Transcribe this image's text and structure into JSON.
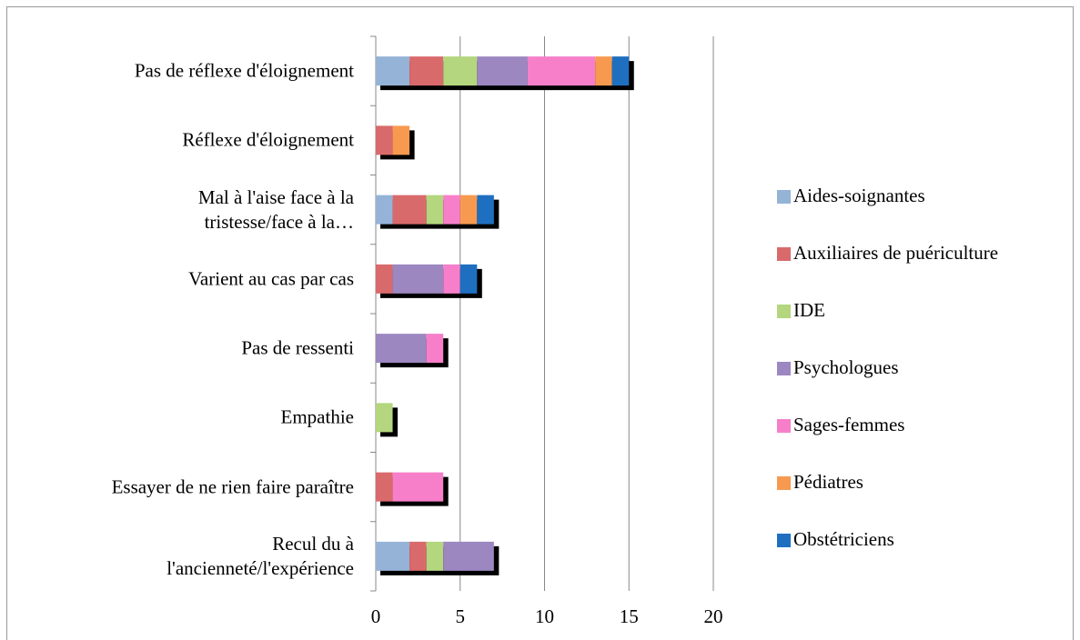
{
  "chart_data": {
    "type": "stacked-bar-horizontal",
    "categories": [
      "Pas de réflexe d'éloignement",
      "Réflexe d'éloignement",
      "Mal à l'aise face à la\ntristesse/face à la…",
      "Varient au cas par cas",
      "Pas de ressenti",
      "Empathie",
      "Essayer de ne rien faire paraître",
      "Recul du à\nl'ancienneté/l'expérience"
    ],
    "series": [
      {
        "name": "Aides-soignantes",
        "color": "#95b3d7",
        "values": [
          2,
          0,
          1,
          0,
          0,
          0,
          0,
          2
        ]
      },
      {
        "name": "Auxiliaires de puériculture",
        "color": "#d96a6c",
        "values": [
          2,
          1,
          2,
          1,
          0,
          0,
          1,
          1
        ]
      },
      {
        "name": "IDE",
        "color": "#b3d67e",
        "values": [
          2,
          0,
          1,
          0,
          0,
          1,
          0,
          1
        ]
      },
      {
        "name": "Psychologues",
        "color": "#9c87c0",
        "values": [
          3,
          0,
          0,
          3,
          3,
          0,
          0,
          3
        ]
      },
      {
        "name": "Sages-femmes",
        "color": "#f77fc9",
        "values": [
          4,
          0,
          1,
          1,
          1,
          0,
          3,
          0
        ]
      },
      {
        "name": "Pédiatres",
        "color": "#f79a50",
        "values": [
          1,
          1,
          1,
          0,
          0,
          0,
          0,
          0
        ]
      },
      {
        "name": "Obstétriciens",
        "color": "#1f6fc0",
        "values": [
          1,
          0,
          1,
          1,
          0,
          0,
          0,
          0
        ]
      }
    ],
    "xlim": [
      0,
      20
    ],
    "xticks": [
      0,
      5,
      10,
      15,
      20
    ],
    "grid": true,
    "legend": "right"
  }
}
